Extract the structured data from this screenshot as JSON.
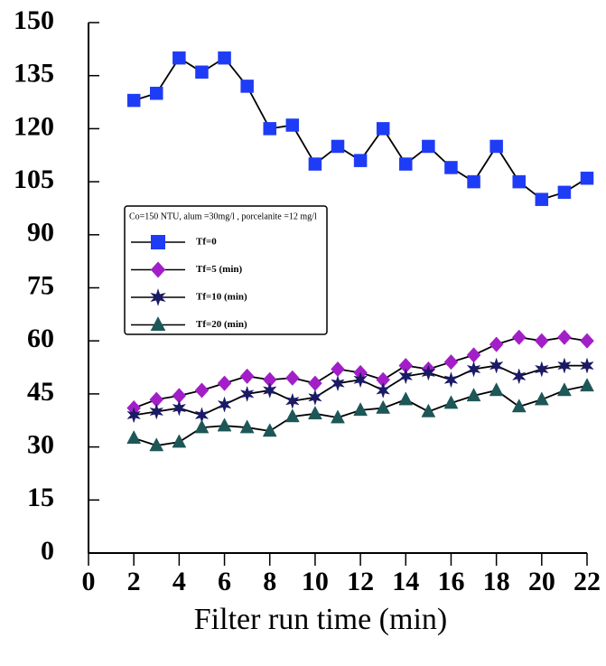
{
  "chart_data": {
    "type": "line",
    "x_label": "Filter run time (min)",
    "legend_title": "Co=150 NTU, alum =30mg/l , porcelanite =12 mg/l",
    "x": [
      2,
      3,
      4,
      5,
      6,
      7,
      8,
      9,
      10,
      11,
      12,
      13,
      14,
      15,
      16,
      17,
      18,
      19,
      20,
      21,
      22
    ],
    "series": [
      {
        "name": "Tf=0",
        "color": "#1e3cf5",
        "marker": "square",
        "values": [
          128,
          130,
          140,
          136,
          140,
          132,
          120,
          121,
          110,
          115,
          111,
          120,
          110,
          115,
          109,
          105,
          115,
          105,
          100,
          102,
          106
        ]
      },
      {
        "name": "Tf=5 (min)",
        "color": "#a21fc8",
        "marker": "diamond",
        "values": [
          41,
          43.4,
          44.5,
          46,
          48,
          50,
          49,
          49.5,
          48,
          52,
          51,
          49,
          53,
          52,
          54,
          56,
          59,
          61,
          60,
          61,
          60
        ]
      },
      {
        "name": "Tf=10 (min)",
        "color": "#1b1a66",
        "marker": "star",
        "values": [
          39,
          40,
          41,
          39,
          42,
          45,
          46,
          43,
          44,
          48,
          49,
          46,
          50,
          51,
          49,
          52,
          53,
          50,
          52,
          53,
          53
        ]
      },
      {
        "name": "Tf=20 (min)",
        "color": "#1d5757",
        "marker": "triangle",
        "values": [
          32.5,
          30.4,
          31.4,
          35.5,
          36,
          35.5,
          34.5,
          38.6,
          39.4,
          38.3,
          40.4,
          41,
          43.4,
          40,
          42.4,
          44.5,
          46,
          41.4,
          43.4,
          46,
          47.3
        ]
      }
    ],
    "xlim": [
      0,
      22
    ],
    "xticks": [
      0,
      2,
      4,
      6,
      8,
      10,
      12,
      14,
      16,
      18,
      20,
      22
    ],
    "ylim": [
      0,
      150
    ],
    "yticks": [
      0,
      15,
      30,
      45,
      60,
      75,
      90,
      105,
      120,
      135,
      150
    ]
  }
}
